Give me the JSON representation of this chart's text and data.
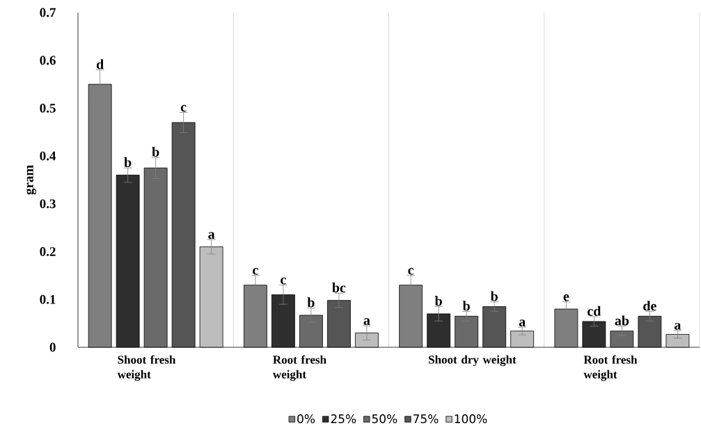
{
  "chart_data": {
    "type": "bar",
    "ylabel": "gram",
    "categories": [
      "Shoot fresh weight",
      "Root fresh weight",
      "Shoot dry weight",
      "Root fresh weight"
    ],
    "series": [
      {
        "name": "0%",
        "color": "#7f7f7f",
        "values": [
          0.55,
          0.13,
          0.13,
          0.08
        ],
        "errors": [
          0.03,
          0.02,
          0.02,
          0.015
        ],
        "value_labels": [
          "d",
          "c",
          "c",
          "e"
        ]
      },
      {
        "name": "25%",
        "color": "#2e2e2e",
        "values": [
          0.36,
          0.11,
          0.07,
          0.054
        ],
        "errors": [
          0.015,
          0.02,
          0.015,
          0.01
        ],
        "value_labels": [
          "b",
          "c",
          "b",
          "cd"
        ]
      },
      {
        "name": "50%",
        "color": "#6a6a6a",
        "values": [
          0.375,
          0.067,
          0.065,
          0.034
        ],
        "errors": [
          0.022,
          0.015,
          0.01,
          0.01
        ],
        "value_labels": [
          "b",
          "b",
          "b",
          "ab"
        ]
      },
      {
        "name": "75%",
        "color": "#555555",
        "values": [
          0.47,
          0.098,
          0.085,
          0.065
        ],
        "errors": [
          0.021,
          0.015,
          0.01,
          0.01
        ],
        "value_labels": [
          "c",
          "bc",
          "b",
          "de"
        ]
      },
      {
        "name": "100%",
        "color": "#bdbdbd",
        "values": [
          0.21,
          0.03,
          0.034,
          0.027
        ],
        "errors": [
          0.015,
          0.015,
          0.008,
          0.008
        ],
        "value_labels": [
          "a",
          "a",
          "a",
          "a"
        ]
      }
    ],
    "ylim": [
      0,
      0.7
    ],
    "yticks": [
      0,
      0.1,
      0.2,
      0.3,
      0.4,
      0.5,
      0.6,
      0.7
    ],
    "grid": "x",
    "legend": "bottom"
  }
}
